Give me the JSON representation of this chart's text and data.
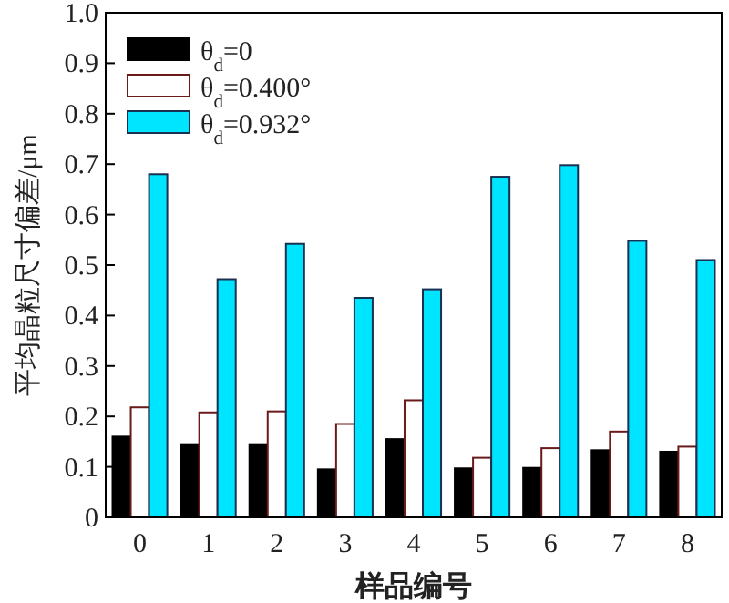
{
  "chart_data": {
    "type": "bar",
    "xlabel": "样品编号",
    "ylabel": "平均晶粒尺寸偏差/μm",
    "categories": [
      "0",
      "1",
      "2",
      "3",
      "4",
      "5",
      "6",
      "7",
      "8"
    ],
    "series": [
      {
        "name": "θ$_{d}$=0",
        "color": "#000000",
        "values": [
          0.16,
          0.145,
          0.145,
          0.095,
          0.155,
          0.097,
          0.098,
          0.133,
          0.13
        ]
      },
      {
        "name": "θ$_{d}$=0.400°",
        "color": "#ffffff",
        "values": [
          0.218,
          0.208,
          0.21,
          0.185,
          0.232,
          0.118,
          0.137,
          0.17,
          0.14
        ]
      },
      {
        "name": "θ$_{d}$=0.932°",
        "color": "#00e5ff",
        "values": [
          0.68,
          0.472,
          0.542,
          0.435,
          0.452,
          0.675,
          0.698,
          0.548,
          0.51
        ]
      }
    ],
    "ylim": [
      0,
      1
    ],
    "yticks": [
      0,
      0.1,
      0.2,
      0.3,
      0.4,
      0.5,
      0.6,
      0.7,
      0.8,
      0.9,
      {
        "value": 1,
        "label": "1.0"
      }
    ],
    "legend": "top left"
  }
}
